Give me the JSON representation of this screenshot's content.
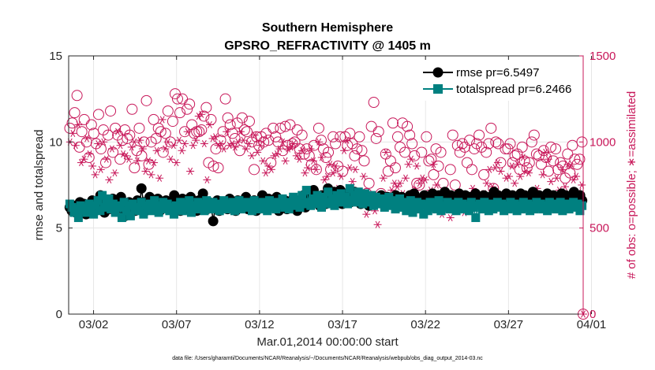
{
  "chart_data": {
    "type": "scatter",
    "title": "Southern Hemisphere",
    "subtitle": "GPSRO_REFRACTIVITY @ 1405 m",
    "xlabel": "Mar.01,2014 00:00:00 start",
    "ylabel": "rmse and totalspread",
    "y2label": "# of obs: o=possible; ∗=assimilated",
    "note": "data file: /Users/gharamti/Documents/NCAR/Reanalysis/~/Documents/NCAR/Reanalysis/webpub/obs_diag_output_2014-03.nc",
    "xlim": [
      0.5,
      31.5
    ],
    "ylim": [
      0,
      15
    ],
    "y2lim": [
      0,
      1500
    ],
    "xticks": [
      2,
      7,
      12,
      17,
      22,
      27,
      32
    ],
    "xticklabels": [
      "03/02",
      "03/07",
      "03/12",
      "03/17",
      "03/22",
      "03/27",
      "04/01"
    ],
    "yticks": [
      0,
      5,
      10,
      15
    ],
    "y2ticks": [
      0,
      500,
      1000,
      1500
    ],
    "grid": true,
    "legend_position": "top-right",
    "colors": {
      "rmse": "#000000",
      "spread": "#008080",
      "obs": "#c8185a",
      "axis": "#262626"
    },
    "series": [
      {
        "name": "rmse",
        "legend": "rmse pr=6.5497",
        "marker": "circle",
        "axis": "left",
        "values": [
          6.2,
          6.0,
          6.3,
          5.9,
          6.1,
          6.5,
          6.2,
          6.4,
          5.8,
          6.3,
          6.1,
          6.6,
          6.0,
          6.4,
          6.2,
          6.9,
          6.3,
          5.9,
          6.5,
          6.1,
          6.3,
          6.7,
          6.0,
          6.4,
          6.2,
          6.8,
          6.1,
          5.7,
          6.3,
          6.5,
          6.1,
          6.4,
          6.0,
          6.6,
          6.2,
          7.3,
          6.5,
          6.0,
          6.3,
          6.8,
          6.1,
          6.4,
          6.2,
          6.7,
          6.0,
          6.5,
          6.3,
          6.6,
          6.1,
          6.4,
          6.2,
          6.9,
          6.3,
          6.5,
          6.0,
          6.7,
          6.2,
          6.4,
          6.1,
          6.8,
          6.3,
          6.5,
          6.0,
          6.6,
          6.2,
          7.0,
          6.4,
          6.1,
          6.5,
          6.3,
          5.4,
          6.2,
          6.6,
          6.0,
          6.4,
          6.3,
          6.5,
          6.1,
          6.7,
          6.2,
          6.4,
          6.0,
          6.6,
          6.3,
          6.5,
          6.2,
          6.8,
          6.1,
          6.4,
          6.3,
          6.6,
          6.0,
          6.5,
          6.2,
          6.9,
          6.4,
          6.1,
          6.7,
          6.3,
          6.5,
          6.2,
          6.8,
          6.0,
          6.4,
          6.3,
          6.6,
          6.1,
          6.5,
          6.2,
          6.7,
          6.4,
          6.0,
          6.6,
          6.3,
          6.9,
          6.2,
          6.5,
          6.8,
          6.4,
          7.2,
          6.5,
          6.7,
          6.3,
          6.9,
          6.6,
          6.4,
          7.3,
          6.8,
          6.5,
          7.1,
          6.9,
          6.6,
          7.2,
          6.4,
          6.8,
          7.0,
          6.7,
          6.5,
          6.9,
          7.1,
          6.6,
          6.8,
          6.4,
          6.7,
          6.9,
          6.5,
          6.3,
          6.8,
          6.6,
          6.4,
          6.7,
          6.5,
          6.9,
          6.6,
          6.3,
          6.8,
          6.5,
          6.7,
          6.4,
          6.9,
          6.6,
          6.5,
          6.8,
          6.4,
          6.7,
          6.5,
          6.9,
          6.6,
          7.0,
          6.8,
          6.5,
          6.7,
          6.4,
          6.9,
          6.6,
          6.8,
          6.5,
          7.0,
          6.7,
          6.4,
          6.9,
          6.6,
          6.8,
          7.1,
          6.5,
          6.7,
          6.9,
          6.4,
          6.8,
          6.6,
          7.0,
          6.7,
          6.5,
          6.9,
          6.6,
          6.8,
          6.4,
          6.7,
          7.0,
          6.6,
          6.8,
          6.5,
          6.9,
          6.7,
          6.4,
          6.8,
          6.6,
          7.1,
          6.5,
          6.9,
          6.7,
          6.4,
          6.8,
          7.0,
          6.6,
          6.5,
          6.9,
          6.7,
          6.8,
          6.5,
          7.0,
          6.6,
          6.9,
          6.4,
          6.8,
          6.6,
          7.1,
          6.7,
          6.5,
          6.9,
          6.6,
          6.8,
          6.4,
          7.0,
          6.7,
          6.6,
          6.9,
          6.5,
          6.8,
          6.7,
          7.0,
          6.6,
          6.9,
          6.4,
          6.8,
          6.6,
          7.1,
          6.5,
          6.7,
          6.9,
          6.6
        ]
      },
      {
        "name": "totalspread",
        "legend": "totalspread pr=6.2466",
        "marker": "square",
        "axis": "left",
        "values": [
          6.4,
          6.2,
          5.9,
          6.1,
          5.6,
          6.3,
          6.0,
          6.2,
          5.9,
          6.4,
          6.1,
          5.8,
          6.3,
          6.6,
          6.0,
          6.9,
          6.2,
          6.5,
          6.7,
          6.1,
          6.4,
          5.9,
          6.3,
          6.2,
          5.6,
          6.5,
          6.0,
          6.3,
          5.7,
          6.4,
          6.1,
          6.2,
          6.0,
          6.5,
          5.8,
          6.3,
          6.1,
          6.4,
          6.0,
          6.6,
          6.2,
          5.9,
          6.3,
          6.5,
          6.1,
          6.4,
          6.0,
          6.2,
          5.8,
          6.3,
          6.1,
          6.5,
          6.0,
          6.4,
          6.2,
          6.6,
          5.9,
          6.3,
          6.1,
          6.5,
          6.2,
          6.4,
          6.0,
          6.6,
          6.3,
          6.1,
          6.5,
          6.2,
          6.4,
          6.0,
          6.3,
          6.6,
          6.1,
          6.4,
          6.2,
          6.5,
          6.0,
          6.3,
          6.6,
          6.1,
          6.4,
          6.2,
          6.5,
          6.3,
          6.0,
          6.6,
          6.2,
          6.4,
          6.1,
          6.5,
          6.3,
          6.0,
          6.6,
          6.2,
          6.4,
          6.1,
          6.5,
          6.3,
          6.7,
          6.2,
          6.4,
          6.1,
          6.5,
          6.8,
          6.3,
          6.6,
          6.2,
          6.9,
          6.4,
          7.2,
          6.5,
          6.3,
          6.7,
          6.4,
          6.9,
          6.6,
          6.2,
          6.8,
          6.5,
          7.1,
          6.4,
          6.7,
          6.3,
          6.9,
          6.6,
          7.0,
          6.5,
          6.8,
          6.4,
          7.3,
          6.6,
          6.9,
          6.5,
          7.1,
          6.8,
          6.4,
          7.0,
          6.7,
          6.5,
          6.9,
          6.3,
          6.8,
          6.6,
          6.4,
          6.7,
          6.2,
          6.5,
          6.8,
          6.3,
          6.6,
          6.1,
          6.4,
          6.7,
          6.2,
          6.5,
          6.0,
          6.3,
          6.6,
          5.9,
          6.2,
          6.5,
          6.1,
          6.4,
          5.8,
          6.3,
          6.0,
          6.5,
          6.2,
          6.4,
          6.1,
          6.6,
          6.0,
          6.3,
          6.2,
          6.5,
          6.1,
          6.4,
          6.3,
          6.0,
          6.5,
          6.2,
          6.4,
          6.1,
          6.3,
          6.0,
          6.5,
          6.2,
          5.6,
          6.3,
          6.4,
          6.1,
          6.5,
          6.2,
          6.0,
          6.4,
          6.1,
          6.3,
          6.5,
          6.2,
          6.4,
          6.0,
          6.3,
          6.1,
          6.5,
          6.2,
          6.4,
          6.0,
          6.3,
          6.1,
          6.5,
          6.2,
          6.4,
          6.0,
          6.3,
          6.1,
          6.5,
          6.2,
          6.4,
          6.1,
          6.3,
          6.0,
          6.5,
          6.2,
          6.4,
          6.1,
          6.3,
          6.5,
          6.0,
          6.2,
          6.4,
          6.1,
          6.3,
          6.5,
          6.2,
          6.4,
          6.0,
          6.3
        ]
      },
      {
        "name": "possible",
        "marker": "open-circle",
        "axis": "right",
        "values": [
          1080,
          1110,
          1170,
          1270,
          970,
          1060,
          1130,
          1000,
          910,
          1100,
          1050,
          990,
          1160,
          960,
          1070,
          880,
          1040,
          1180,
          940,
          1080,
          1040,
          900,
          1010,
          1070,
          1020,
          1040,
          1190,
          850,
          950,
          1080,
          920,
          1000,
          1240,
          870,
          1000,
          1130,
          1020,
          1080,
          1060,
          940,
          1050,
          1180,
          1000,
          1120,
          1280,
          1250,
          1170,
          1250,
          1060,
          1190,
          1220,
          1100,
          1050,
          1060,
          1060,
          1070,
          1150,
          1200,
          880,
          1130,
          860,
          960,
          850,
          1010,
          1060,
          1250,
          1140,
          1100,
          1050,
          1020,
          1110,
          950,
          1140,
          1070,
          1060,
          1120,
          1000,
          840,
          1030,
          980,
          1030,
          1000,
          1050,
          1010,
          880,
          1080,
          1030,
          1000,
          1080,
          950,
          1090,
          980,
          1100,
          990,
          1000,
          1070,
          960,
          1040,
          930,
          960,
          920,
          870,
          980,
          840,
          1080,
          1010,
          960,
          910,
          940,
          840,
          1030,
          990,
          860,
          1030,
          830,
          1030,
          980,
          1050,
          990,
          920,
          960,
          1030,
          950,
          890,
          700,
          760,
          1090,
          1230,
          1020,
          1060,
          700,
          640,
          930,
          830,
          890,
          1110,
          850,
          1030,
          970,
          1110,
          940,
          1090,
          1040,
          990,
          920,
          760,
          750,
          940,
          620,
          1030,
          890,
          900,
          810,
          960,
          860,
          940,
          760,
          700,
          680,
          840,
          1040,
          750,
          980,
          940,
          990,
          970,
          880,
          1010,
          840,
          960,
          990,
          1040,
          970,
          810,
          940,
          990,
          1080,
          730,
          1000,
          990,
          880,
          640,
          960,
          960,
          990,
          880,
          920,
          930,
          840,
          970,
          890,
          850,
          880,
          1000,
          1040,
          930,
          920,
          870,
          950,
          910,
          830,
          970,
          890,
          960,
          840,
          880,
          860,
          790,
          930,
          820,
          980,
          900,
          870,
          900,
          1000
        ]
      },
      {
        "name": "assimilated",
        "marker": "asterisk",
        "axis": "right",
        "values": [
          1000,
          1050,
          980,
          1100,
          880,
          900,
          1020,
          930,
          860,
          810,
          990,
          840,
          1000,
          900,
          780,
          960,
          820,
          1060,
          980,
          930,
          920,
          900,
          970,
          1000,
          890,
          1010,
          960,
          830,
          890,
          810,
          880,
          950,
          790,
          1130,
          960,
          1000,
          900,
          980,
          880,
          1010,
          950,
          990,
          1060,
          830,
          980,
          1010,
          1150,
          1160,
          990,
          780,
          1100,
          1020,
          1030,
          980,
          990,
          960,
          1060,
          980,
          990,
          970,
          1000,
          1060,
          1010,
          960,
          990,
          920,
          1040,
          940,
          980,
          890,
          820,
          860,
          840,
          920,
          930,
          960,
          1000,
          890,
          960,
          970,
          990,
          920,
          900,
          950,
          820,
          850,
          960,
          890,
          840,
          1000,
          910,
          780,
          800,
          870,
          820,
          860,
          730,
          800,
          950,
          1010,
          850,
          770,
          840,
          690,
          660,
          800,
          580,
          630,
          690,
          600,
          520,
          690,
          790,
          940,
          690,
          720,
          760,
          740,
          760,
          700,
          790,
          870,
          900,
          720,
          860,
          760,
          790,
          780,
          700,
          720,
          870,
          750,
          600,
          580,
          650,
          680,
          560,
          620,
          650,
          620,
          690,
          590,
          630,
          650,
          730,
          620,
          660,
          690,
          700,
          760,
          840,
          740,
          850,
          880,
          830,
          690,
          790,
          800,
          860,
          760,
          870,
          800,
          910,
          830,
          820,
          680,
          700,
          730,
          690,
          810,
          940,
          900,
          770,
          690,
          790,
          720,
          840,
          740,
          870,
          860,
          780,
          800,
          710,
          750
        ]
      }
    ]
  }
}
